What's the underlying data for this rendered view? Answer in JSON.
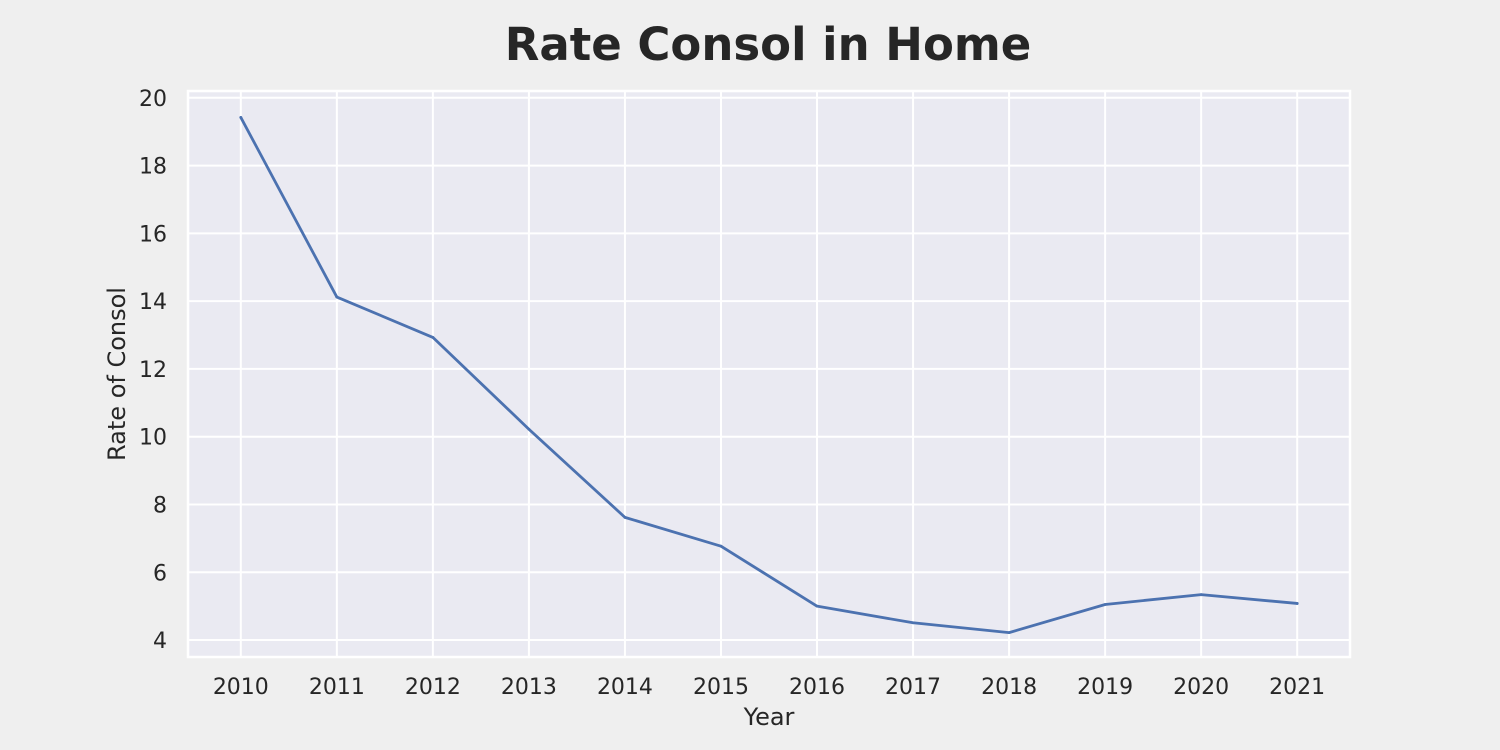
{
  "chart_data": {
    "type": "line",
    "title": "Rate Consol in Home",
    "xlabel": "Year",
    "ylabel": "Rate of Consol",
    "x": [
      2010,
      2011,
      2012,
      2013,
      2014,
      2015,
      2016,
      2017,
      2018,
      2019,
      2020,
      2021
    ],
    "series": [
      {
        "values": [
          19.42,
          14.12,
          12.93,
          10.22,
          7.62,
          6.77,
          5.0,
          4.51,
          4.22,
          5.05,
          5.34,
          5.08
        ]
      }
    ],
    "xlim": [
      2009.45,
      2021.55
    ],
    "ylim": [
      3.5,
      20.2
    ],
    "yticks": [
      4,
      6,
      8,
      10,
      12,
      14,
      16,
      18,
      20
    ],
    "xticks": [
      2010,
      2011,
      2012,
      2013,
      2014,
      2015,
      2016,
      2017,
      2018,
      2019,
      2020,
      2021
    ],
    "grid": true,
    "colors": {
      "line": "#4c72b0",
      "plot_background": "#eaeaf2",
      "figure_background": "#efefef",
      "grid": "#ffffff"
    }
  }
}
